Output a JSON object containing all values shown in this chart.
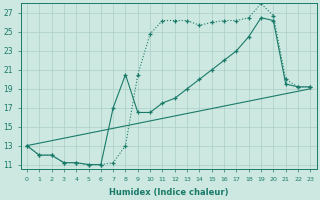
{
  "xlabel": "Humidex (Indice chaleur)",
  "bg_color": "#cce8e0",
  "line_color": "#1a7a6a",
  "grid_color": "#aacfc8",
  "xlim": [
    -0.5,
    23.5
  ],
  "ylim": [
    10.5,
    28.0
  ],
  "yticks": [
    11,
    13,
    15,
    17,
    19,
    21,
    23,
    25,
    27
  ],
  "xticks": [
    0,
    1,
    2,
    3,
    4,
    5,
    6,
    7,
    8,
    9,
    10,
    11,
    12,
    13,
    14,
    15,
    16,
    17,
    18,
    19,
    20,
    21,
    22,
    23
  ],
  "line1_x": [
    0,
    1,
    2,
    3,
    4,
    5,
    6,
    7,
    8,
    9,
    10,
    11,
    12,
    13,
    14,
    15,
    16,
    17,
    18,
    19,
    20,
    21,
    22,
    23
  ],
  "line1_y": [
    13,
    12,
    12,
    11.2,
    11.2,
    11,
    11,
    11.2,
    13,
    20.5,
    24.8,
    26.2,
    26.2,
    26.2,
    25.7,
    26.0,
    26.2,
    26.2,
    26.5,
    28.0,
    26.7,
    20.0,
    19.2,
    19.2
  ],
  "line2_x": [
    0,
    1,
    2,
    3,
    4,
    5,
    6,
    7,
    8,
    9,
    10,
    11,
    12,
    13,
    14,
    15,
    16,
    17,
    18,
    19,
    20,
    21,
    22,
    23
  ],
  "line2_y": [
    13,
    12,
    12,
    11.2,
    11.2,
    11,
    11,
    17,
    20.5,
    16.5,
    16.5,
    17.5,
    18.0,
    19.0,
    20.0,
    21.0,
    22.0,
    23.0,
    24.5,
    26.5,
    26.2,
    19.5,
    19.2,
    19.2
  ],
  "line3_x": [
    0,
    23
  ],
  "line3_y": [
    13,
    19
  ]
}
